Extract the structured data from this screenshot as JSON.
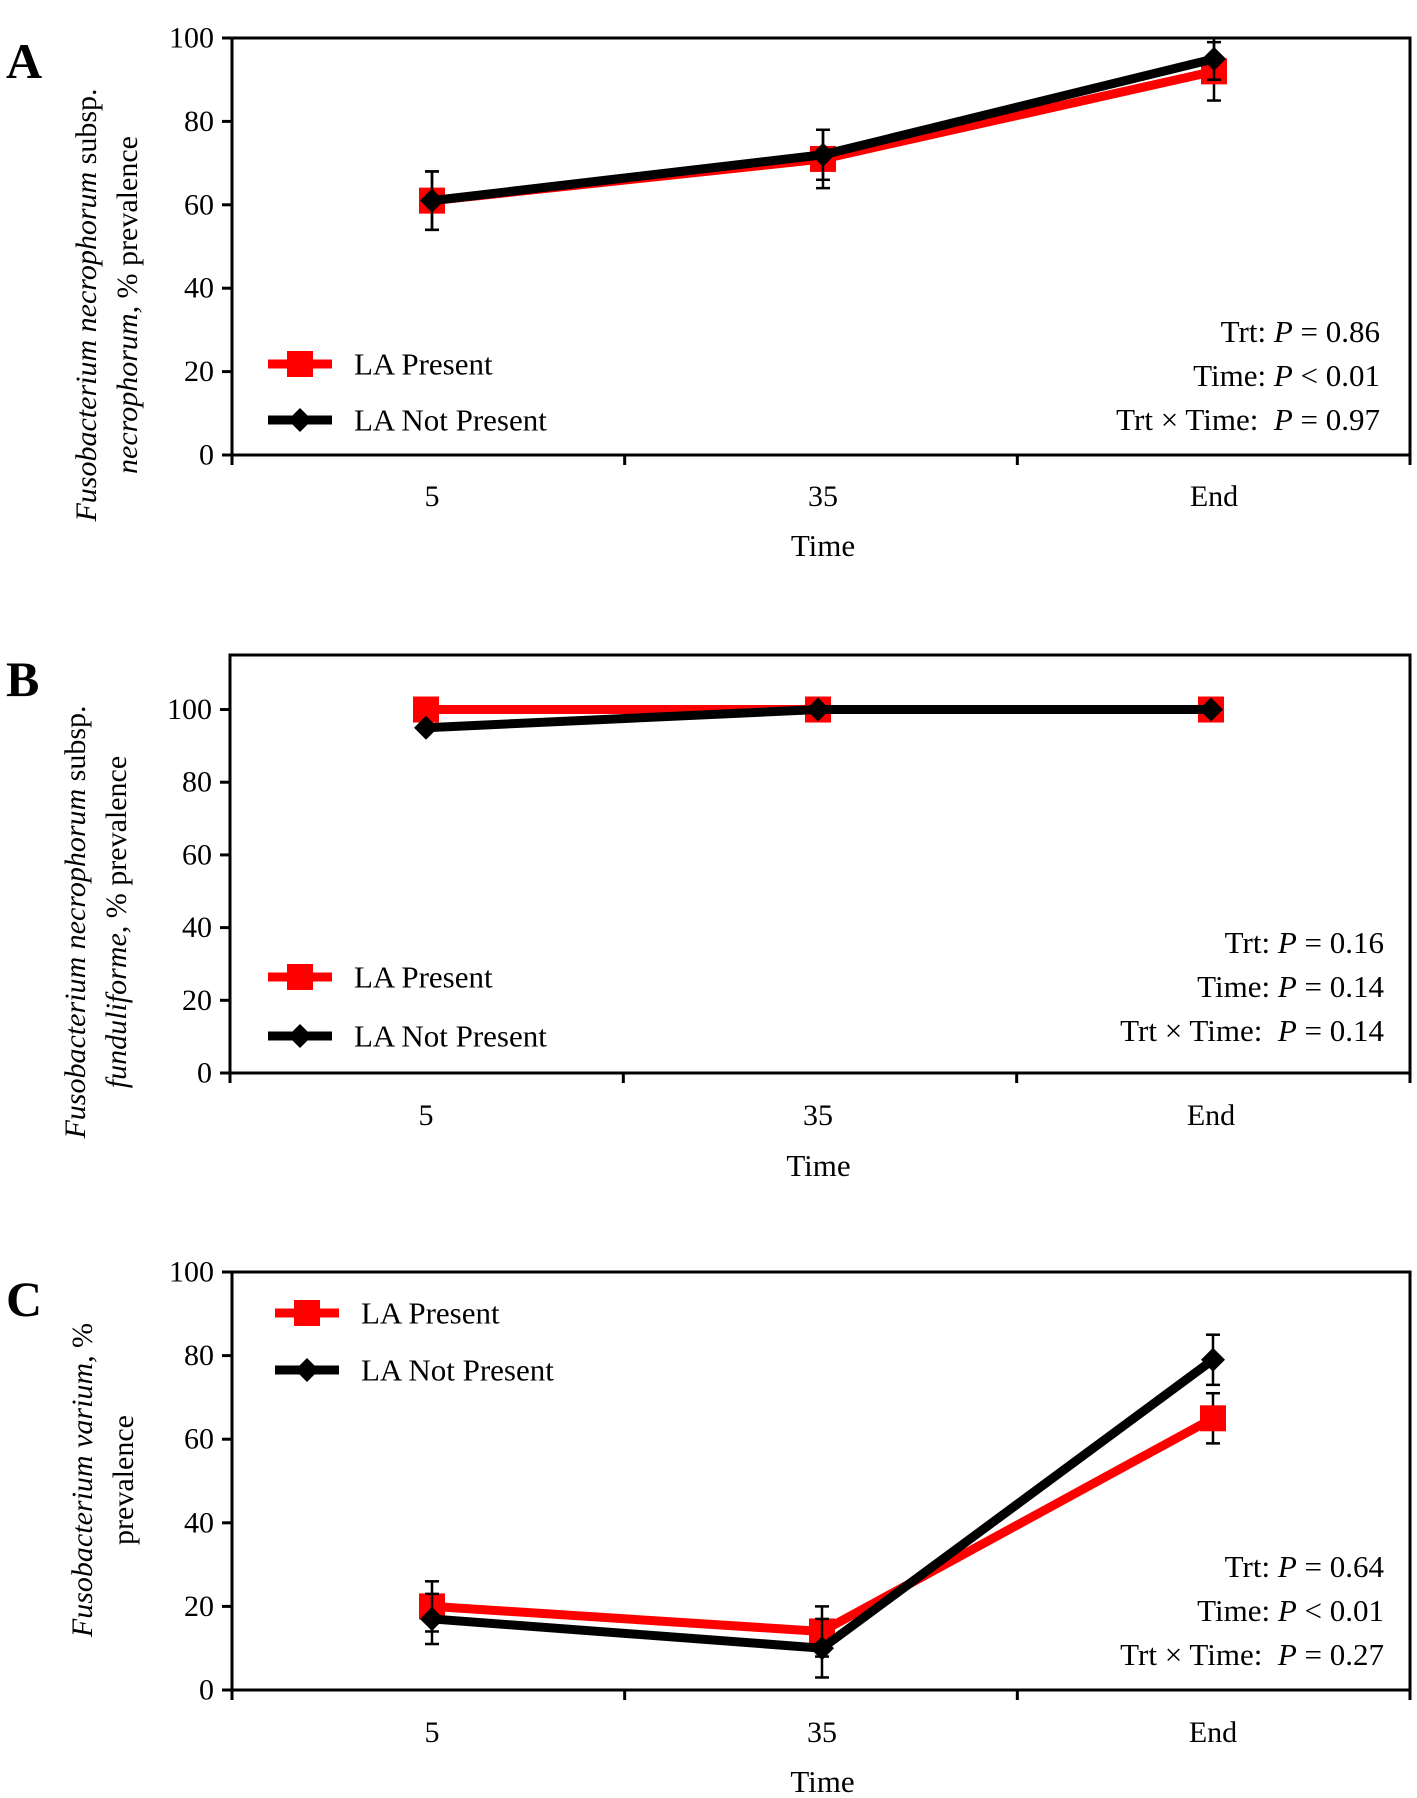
{
  "figure": {
    "colors": {
      "la_present": "#ff0000",
      "la_not_present": "#000000",
      "axis": "#000000"
    }
  },
  "chart_data": [
    {
      "panel": "A",
      "type": "line",
      "categories": [
        "5",
        "35",
        "End"
      ],
      "ylim": [
        0,
        100
      ],
      "yticks": [
        "0",
        "20",
        "40",
        "60",
        "80",
        "100"
      ],
      "xlabel": "Time",
      "ylabel_lines": [
        [
          {
            "text": "Fusobacterium necrophorum",
            "italic": true
          },
          {
            "text": " subsp.",
            "italic": false
          }
        ],
        [
          {
            "text": "necrophorum,",
            "italic": true
          },
          {
            "text": " % prevalence",
            "italic": false
          }
        ]
      ],
      "series": [
        {
          "name": "LA Present",
          "color": "#ff0000",
          "marker": "square",
          "values": [
            61,
            71,
            92
          ],
          "err": [
            7,
            7,
            7
          ]
        },
        {
          "name": "LA Not Present",
          "color": "#000000",
          "marker": "diamond",
          "values": [
            61,
            72,
            95
          ],
          "err": [
            7,
            6,
            5
          ]
        }
      ],
      "legend_position": "bottom-left",
      "stats": [
        {
          "label": "Trt: ",
          "p": "P",
          "rest": " = 0.86"
        },
        {
          "label": "Time: ",
          "p": "P",
          "rest": " < 0.01"
        },
        {
          "label": "Trt × Time:  ",
          "p": "P",
          "rest": " = 0.97"
        }
      ]
    },
    {
      "panel": "B",
      "type": "line",
      "categories": [
        "5",
        "35",
        "End"
      ],
      "ylim": [
        0,
        115
      ],
      "yticks": [
        "0",
        "20",
        "40",
        "60",
        "80",
        "100"
      ],
      "xlabel": "Time",
      "ylabel_lines": [
        [
          {
            "text": "Fusobacterium necrophorum",
            "italic": true
          },
          {
            "text": " subsp.",
            "italic": false
          }
        ],
        [
          {
            "text": "funduliforme,",
            "italic": true
          },
          {
            "text": " % prevalence",
            "italic": false
          }
        ]
      ],
      "series": [
        {
          "name": "LA Present",
          "color": "#ff0000",
          "marker": "square",
          "values": [
            100,
            100,
            100
          ],
          "err": [
            0,
            0,
            0
          ]
        },
        {
          "name": "LA Not Present",
          "color": "#000000",
          "marker": "diamond",
          "values": [
            95,
            100,
            100
          ],
          "err": [
            0,
            0,
            0
          ]
        }
      ],
      "legend_position": "bottom-left",
      "stats": [
        {
          "label": "Trt: ",
          "p": "P",
          "rest": " = 0.16"
        },
        {
          "label": "Time: ",
          "p": "P",
          "rest": " = 0.14"
        },
        {
          "label": "Trt × Time:  ",
          "p": "P",
          "rest": " = 0.14"
        }
      ]
    },
    {
      "panel": "C",
      "type": "line",
      "categories": [
        "5",
        "35",
        "End"
      ],
      "ylim": [
        0,
        100
      ],
      "yticks": [
        "0",
        "20",
        "40",
        "60",
        "80",
        "100"
      ],
      "xlabel": "Time",
      "ylabel_lines": [
        [
          {
            "text": "Fusobacterium varium,",
            "italic": true
          },
          {
            "text": " %",
            "italic": false
          }
        ],
        [
          {
            "text": "prevalence",
            "italic": false
          }
        ]
      ],
      "series": [
        {
          "name": "LA Present",
          "color": "#ff0000",
          "marker": "square",
          "values": [
            20,
            14,
            65
          ],
          "err": [
            6,
            6,
            6
          ]
        },
        {
          "name": "LA Not Present",
          "color": "#000000",
          "marker": "diamond",
          "values": [
            17,
            10,
            79
          ],
          "err": [
            6,
            7,
            6
          ]
        }
      ],
      "legend_position": "top-left",
      "stats": [
        {
          "label": "Trt: ",
          "p": "P",
          "rest": " = 0.64"
        },
        {
          "label": "Time: ",
          "p": "P",
          "rest": " < 0.01"
        },
        {
          "label": "Trt × Time:  ",
          "p": "P",
          "rest": " = 0.27"
        }
      ]
    }
  ]
}
